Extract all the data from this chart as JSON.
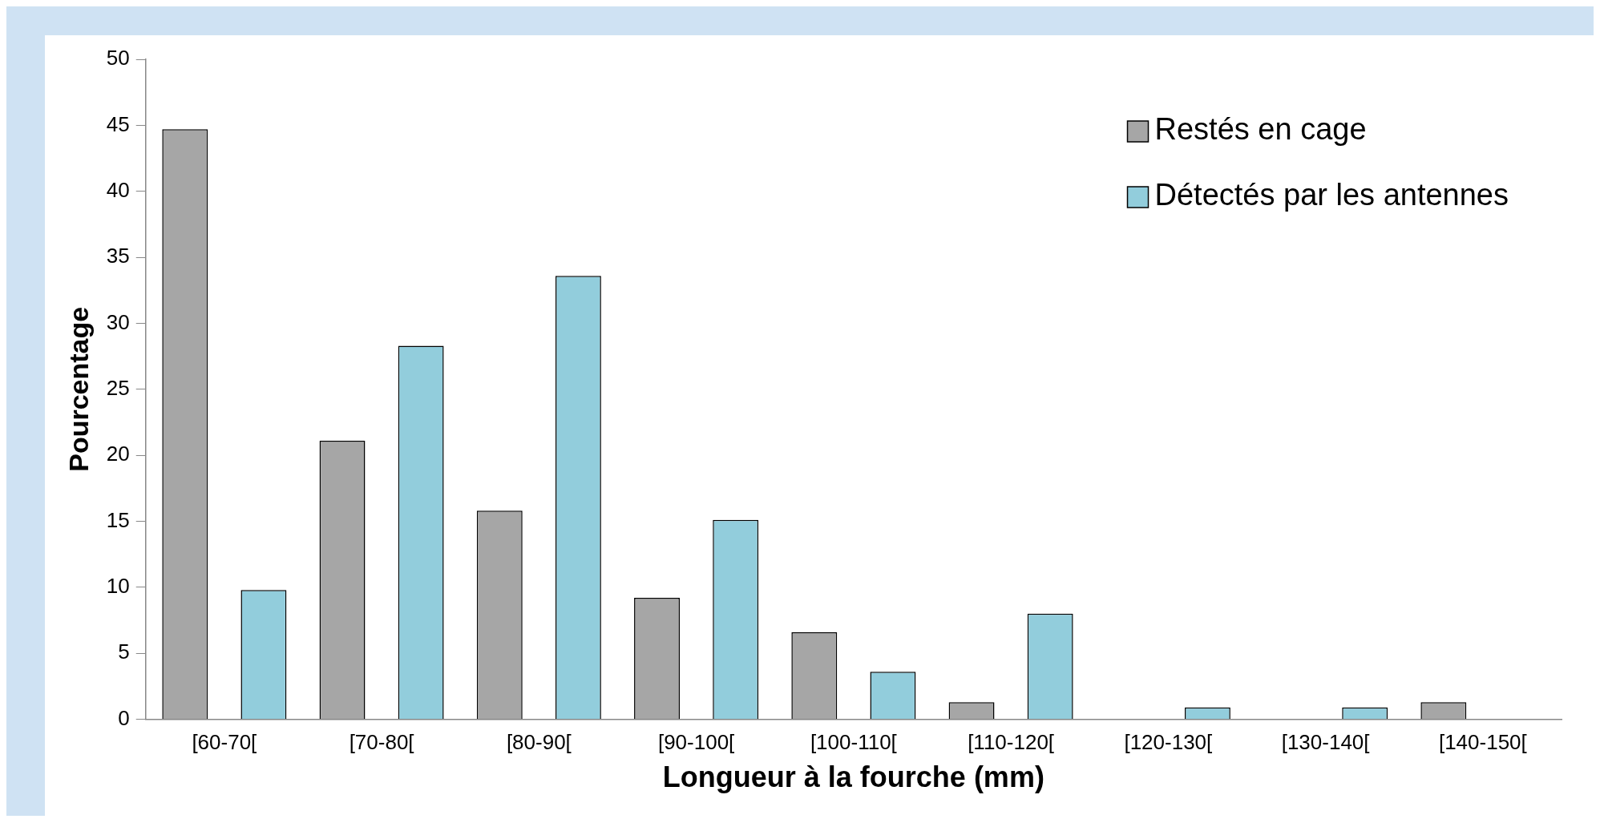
{
  "chart_data": {
    "type": "bar",
    "xlabel": "Longueur à la fourche (mm)",
    "ylabel": "Pourcentage",
    "categories": [
      "[60-70[",
      "[70-80[",
      "[80-90[",
      "[90-100[",
      "[100-110[",
      "[110-120[",
      "[120-130[",
      "[130-140[",
      "[140-150["
    ],
    "series": [
      {
        "name": "Restés en cage",
        "color": "#a6a6a6",
        "values": [
          44.7,
          21.1,
          15.8,
          9.2,
          6.6,
          1.3,
          0,
          0,
          1.3
        ]
      },
      {
        "name": "Détectés par les antennes",
        "color": "#92cddc",
        "values": [
          9.8,
          28.3,
          33.6,
          15.1,
          3.6,
          8.0,
          0.9,
          0.9,
          0
        ]
      }
    ],
    "ylim": [
      0,
      50
    ],
    "yticks": [
      0,
      5,
      10,
      15,
      20,
      25,
      30,
      35,
      40,
      45,
      50
    ],
    "grid": false,
    "legend": "top right"
  }
}
